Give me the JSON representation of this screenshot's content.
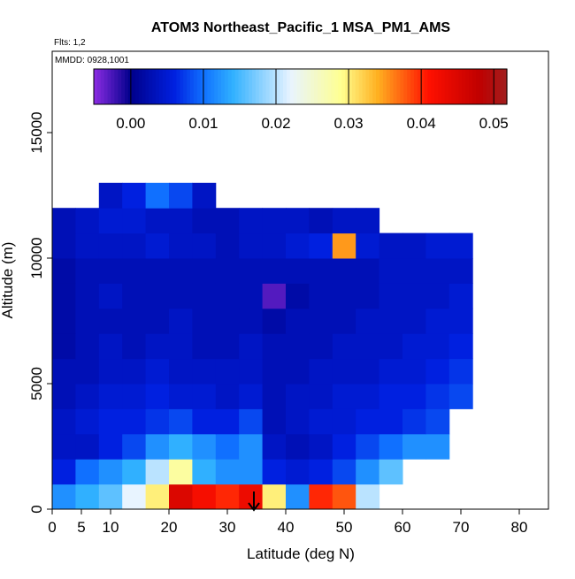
{
  "chart_data": {
    "type": "heatmap",
    "title": "ATOM3 Northeast_Pacific_1 MSA_PM1_AMS",
    "annotations": [
      "Flts: 1,2",
      "MMDD: 0928,1001"
    ],
    "xlabel": "Latitude (deg N)",
    "ylabel": "Altitude (m)",
    "xlim": [
      0,
      85
    ],
    "ylim": [
      0,
      18240
    ],
    "xticks": [
      0,
      5,
      10,
      20,
      30,
      40,
      50,
      60,
      70,
      80
    ],
    "yticks": [
      0,
      5000,
      10000,
      15000
    ],
    "clim": [
      -0.0051,
      0.0518
    ],
    "cticks": [
      {
        "value": 0,
        "label": "0.00"
      },
      0.01,
      0.02,
      0.03,
      0.04,
      0.05
    ],
    "colorscale": [
      [
        -0.005,
        "#8a2be2"
      ],
      [
        0.0,
        "#00008b"
      ],
      [
        0.006,
        "#0020e0"
      ],
      [
        0.01,
        "#1070ff"
      ],
      [
        0.014,
        "#30b0ff"
      ],
      [
        0.022,
        "#e8f4ff"
      ],
      [
        0.029,
        "#ffff90"
      ],
      [
        0.034,
        "#ffb020"
      ],
      [
        0.041,
        "#ff1000"
      ],
      [
        0.048,
        "#c00000"
      ],
      [
        0.052,
        "#a02020"
      ]
    ],
    "xbins": [
      0,
      4,
      8,
      12,
      16,
      20,
      24,
      28,
      32,
      36,
      40,
      44,
      48,
      52,
      56,
      60,
      64,
      68,
      72
    ],
    "ybins": [
      0,
      1000,
      2000,
      3000,
      4000,
      5000,
      6000,
      7000,
      8000,
      9000,
      10000,
      11000,
      12000,
      13000
    ],
    "z": [
      [
        0.012,
        0.014,
        0.016,
        0.022,
        0.03,
        0.045,
        0.042,
        0.04,
        0.043,
        0.03,
        0.012,
        0.04,
        0.038,
        0.02,
        null,
        null,
        null,
        null
      ],
      [
        0.006,
        0.01,
        0.012,
        0.014,
        0.02,
        0.028,
        0.014,
        0.012,
        0.012,
        0.006,
        0.005,
        0.006,
        0.008,
        0.012,
        0.016,
        null,
        null,
        null
      ],
      [
        0.004,
        0.004,
        0.006,
        0.008,
        0.012,
        0.014,
        0.012,
        0.01,
        0.012,
        0.004,
        0.003,
        0.004,
        0.006,
        0.008,
        0.01,
        0.012,
        0.012,
        null
      ],
      [
        0.004,
        0.005,
        0.006,
        0.006,
        0.007,
        0.008,
        0.006,
        0.006,
        0.008,
        0.003,
        0.004,
        0.005,
        0.005,
        0.006,
        0.006,
        0.007,
        0.008,
        null
      ],
      [
        0.003,
        0.004,
        0.005,
        0.005,
        0.006,
        0.005,
        0.005,
        0.004,
        0.005,
        0.003,
        0.004,
        0.004,
        0.005,
        0.005,
        0.006,
        0.006,
        0.007,
        0.008
      ],
      [
        0.003,
        0.003,
        0.004,
        0.004,
        0.005,
        0.004,
        0.004,
        0.004,
        0.004,
        0.003,
        0.003,
        0.004,
        0.004,
        0.004,
        0.005,
        0.005,
        0.006,
        0.007
      ],
      [
        0.002,
        0.003,
        0.004,
        0.003,
        0.004,
        0.004,
        0.003,
        0.003,
        0.004,
        0.003,
        0.003,
        0.003,
        0.004,
        0.004,
        0.004,
        0.005,
        0.005,
        0.006
      ],
      [
        0.002,
        0.003,
        0.003,
        0.003,
        0.003,
        0.004,
        0.003,
        0.003,
        0.003,
        0.002,
        0.003,
        0.003,
        0.003,
        0.004,
        0.004,
        0.004,
        0.005,
        0.005
      ],
      [
        0.002,
        0.003,
        0.004,
        0.003,
        0.003,
        0.003,
        0.003,
        0.003,
        0.003,
        -0.003,
        0.002,
        0.003,
        0.003,
        0.003,
        0.004,
        0.004,
        0.004,
        0.005
      ],
      [
        0.002,
        0.003,
        0.003,
        0.003,
        0.003,
        0.003,
        0.003,
        0.003,
        0.003,
        0.003,
        0.003,
        0.003,
        0.003,
        0.003,
        0.004,
        0.004,
        0.004,
        0.004
      ],
      [
        0.003,
        0.004,
        0.004,
        0.004,
        0.005,
        0.004,
        0.004,
        0.003,
        0.004,
        0.004,
        0.005,
        0.006,
        0.035,
        0.005,
        0.004,
        0.004,
        0.005,
        0.005
      ],
      [
        0.003,
        0.004,
        0.005,
        0.005,
        0.004,
        0.004,
        0.003,
        0.003,
        0.004,
        0.004,
        0.004,
        0.003,
        0.004,
        0.004,
        null,
        null,
        null,
        null
      ],
      [
        null,
        null,
        0.004,
        0.006,
        0.01,
        0.008,
        0.004,
        null,
        null,
        null,
        null,
        null,
        null,
        null,
        null,
        null,
        null,
        null
      ]
    ]
  }
}
